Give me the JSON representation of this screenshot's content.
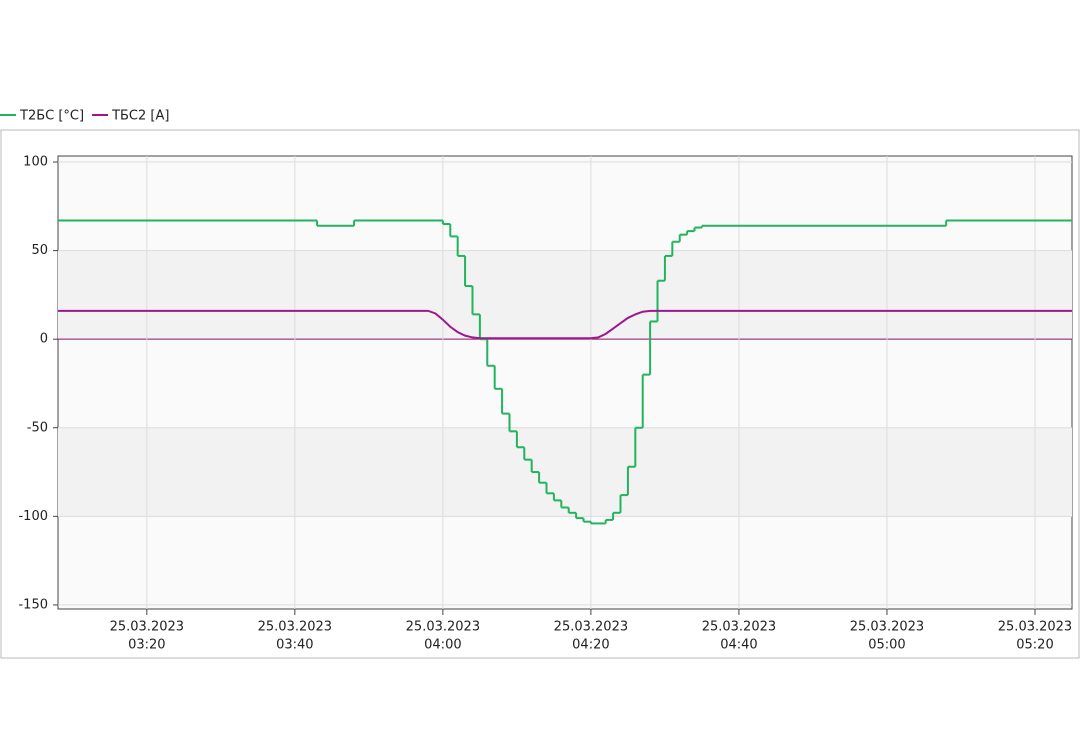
{
  "chart_data": {
    "type": "line",
    "series": [
      {
        "name": "T2БС [°C]",
        "color": "#22b35e",
        "step": true,
        "x": [
          "2023-03-25T03:08",
          "2023-03-25T03:43",
          "2023-03-25T03:48",
          "2023-03-25T04:00",
          "2023-03-25T04:01",
          "2023-03-25T04:02",
          "2023-03-25T04:03",
          "2023-03-25T04:04",
          "2023-03-25T04:05",
          "2023-03-25T04:06",
          "2023-03-25T04:07",
          "2023-03-25T04:08",
          "2023-03-25T04:09",
          "2023-03-25T04:10",
          "2023-03-25T04:11",
          "2023-03-25T04:12",
          "2023-03-25T04:13",
          "2023-03-25T04:14",
          "2023-03-25T04:15",
          "2023-03-25T04:16",
          "2023-03-25T04:17",
          "2023-03-25T04:18",
          "2023-03-25T04:19",
          "2023-03-25T04:20",
          "2023-03-25T04:21",
          "2023-03-25T04:22",
          "2023-03-25T04:23",
          "2023-03-25T04:24",
          "2023-03-25T04:25",
          "2023-03-25T04:26",
          "2023-03-25T04:27",
          "2023-03-25T04:28",
          "2023-03-25T04:29",
          "2023-03-25T04:30",
          "2023-03-25T04:31",
          "2023-03-25T04:32",
          "2023-03-25T04:33",
          "2023-03-25T04:34",
          "2023-03-25T04:35",
          "2023-03-25T05:08",
          "2023-03-25T05:25"
        ],
        "values": [
          67,
          64,
          67,
          65,
          58,
          47,
          30,
          14,
          0,
          -15,
          -28,
          -42,
          -52,
          -61,
          -68,
          -75,
          -81,
          -87,
          -91,
          -95,
          -98,
          -101,
          -103,
          -104,
          -104,
          -102,
          -98,
          -88,
          -72,
          -50,
          -20,
          10,
          33,
          47,
          55,
          59,
          61,
          63,
          64,
          67,
          67
        ]
      },
      {
        "name": "TБС2 [A]",
        "color": "#a0168f",
        "step": false,
        "x": [
          "2023-03-25T03:08",
          "2023-03-25T03:58",
          "2023-03-25T03:59",
          "2023-03-25T04:00",
          "2023-03-25T04:01",
          "2023-03-25T04:02",
          "2023-03-25T04:03",
          "2023-03-25T04:04",
          "2023-03-25T04:05",
          "2023-03-25T04:20",
          "2023-03-25T04:21",
          "2023-03-25T04:22",
          "2023-03-25T04:23",
          "2023-03-25T04:24",
          "2023-03-25T04:25",
          "2023-03-25T04:26",
          "2023-03-25T04:27",
          "2023-03-25T04:28",
          "2023-03-25T05:25"
        ],
        "values": [
          16,
          16,
          14.5,
          11,
          7,
          4,
          2,
          1,
          0.5,
          0.5,
          1,
          3,
          6,
          9,
          12,
          14,
          15.5,
          16,
          16
        ]
      }
    ],
    "xlim": [
      "2023-03-25T03:08",
      "2023-03-25T05:25"
    ],
    "xticks": [
      {
        "value": "2023-03-25T03:20",
        "label": [
          "25.03.2023",
          "03:20"
        ]
      },
      {
        "value": "2023-03-25T03:40",
        "label": [
          "25.03.2023",
          "03:40"
        ]
      },
      {
        "value": "2023-03-25T04:00",
        "label": [
          "25.03.2023",
          "04:00"
        ]
      },
      {
        "value": "2023-03-25T04:20",
        "label": [
          "25.03.2023",
          "04:20"
        ]
      },
      {
        "value": "2023-03-25T04:40",
        "label": [
          "25.03.2023",
          "04:40"
        ]
      },
      {
        "value": "2023-03-25T05:00",
        "label": [
          "25.03.2023",
          "05:00"
        ]
      },
      {
        "value": "2023-03-25T05:20",
        "label": [
          "25.03.2023",
          "05:20"
        ]
      }
    ],
    "ylim": [
      -152.3,
      103.4
    ],
    "yticks": [
      100,
      50,
      0,
      -50,
      -100,
      -150
    ],
    "grid": true,
    "legend": "top-left"
  }
}
